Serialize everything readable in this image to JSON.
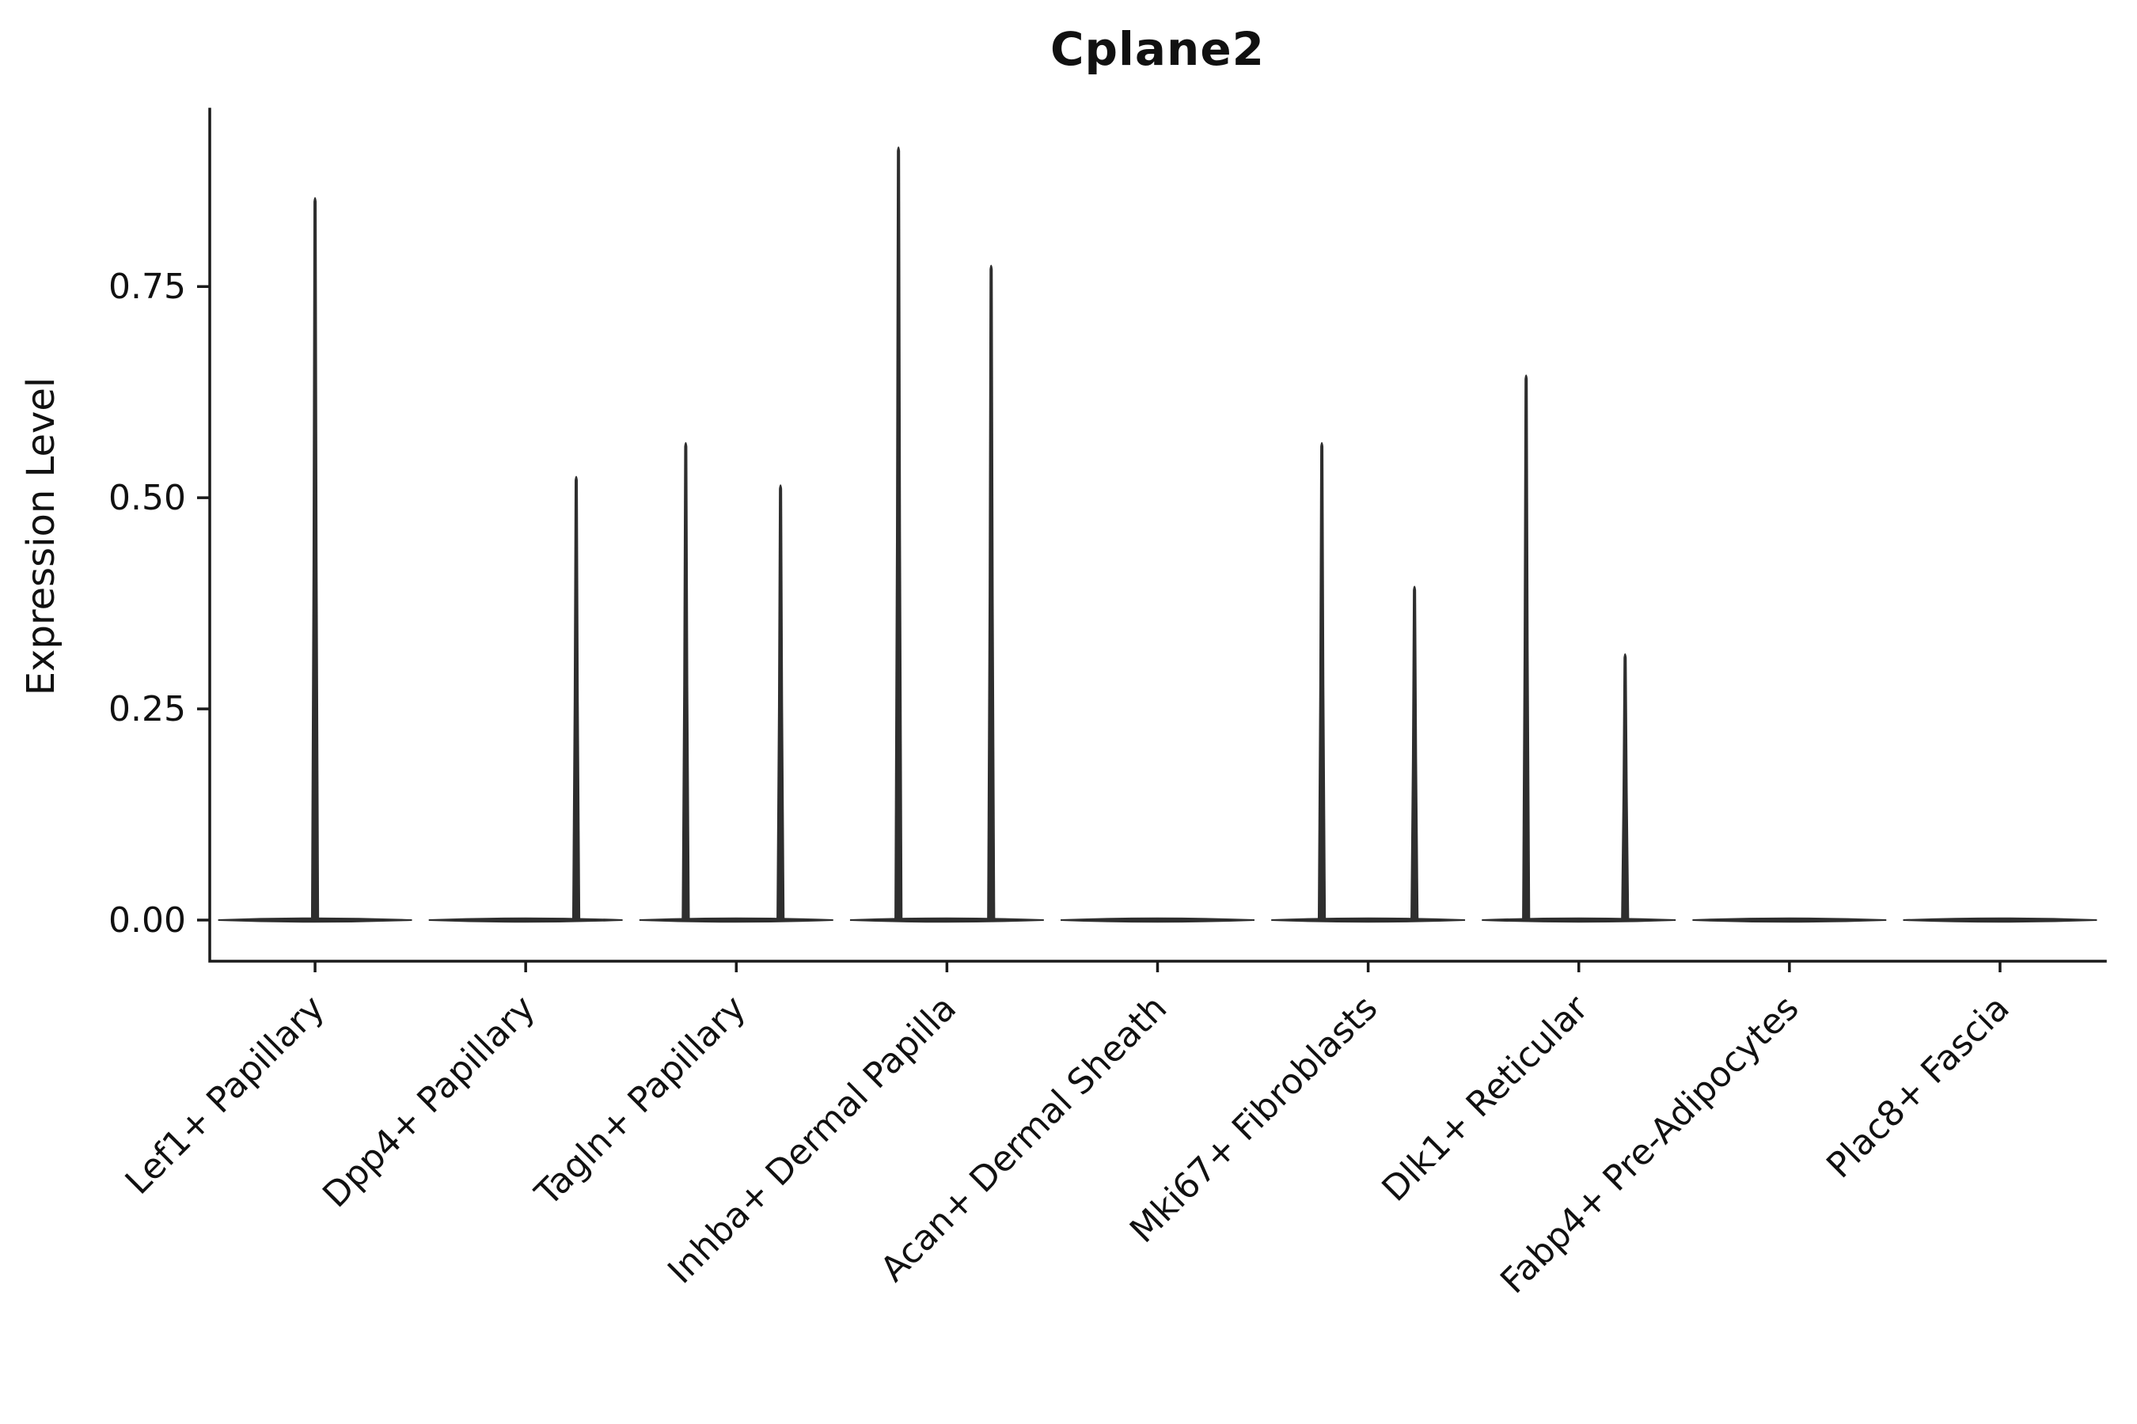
{
  "chart_data": {
    "type": "violin",
    "title": "Cplane2",
    "ylabel": "Expression Level",
    "xlabel": "",
    "ylim": [
      0,
      0.96
    ],
    "yticks": [
      0.0,
      0.25,
      0.5,
      0.75
    ],
    "ytick_labels": [
      "0.00",
      "0.25",
      "0.50",
      "0.75"
    ],
    "categories": [
      "Lef1+ Papillary",
      "Dpp4+ Papillary",
      "Tagln+ Papillary",
      "Inhba+ Dermal Papilla",
      "Acan+ Dermal Sheath",
      "Mki67+ Fibroblasts",
      "Dlk1+ Reticular",
      "Fabp4+ Pre-Adipocytes",
      "Plac8+ Fascia"
    ],
    "violins": [
      {
        "category": "Lef1+ Papillary",
        "spikes": [
          {
            "offset": 0.0,
            "max": 0.86
          }
        ]
      },
      {
        "category": "Dpp4+ Papillary",
        "spikes": [
          {
            "offset": 0.24,
            "max": 0.53
          }
        ]
      },
      {
        "category": "Tagln+ Papillary",
        "spikes": [
          {
            "offset": -0.24,
            "max": 0.57
          },
          {
            "offset": 0.21,
            "max": 0.52
          }
        ]
      },
      {
        "category": "Inhba+ Dermal Papilla",
        "spikes": [
          {
            "offset": -0.23,
            "max": 0.92
          },
          {
            "offset": 0.21,
            "max": 0.78
          }
        ]
      },
      {
        "category": "Acan+ Dermal Sheath",
        "spikes": []
      },
      {
        "category": "Mki67+ Fibroblasts",
        "spikes": [
          {
            "offset": -0.22,
            "max": 0.57
          },
          {
            "offset": 0.22,
            "max": 0.4
          }
        ]
      },
      {
        "category": "Dlk1+ Reticular",
        "spikes": [
          {
            "offset": -0.25,
            "max": 0.65
          },
          {
            "offset": 0.22,
            "max": 0.32
          }
        ]
      },
      {
        "category": "Fabp4+ Pre-Adipocytes",
        "spikes": []
      },
      {
        "category": "Plac8+ Fascia",
        "spikes": []
      }
    ],
    "baseline_half_width": 0.46,
    "line_color": "#2e2e2e",
    "spine_color": "#1a1a1a",
    "text_color": "#111111",
    "grid": false,
    "legend": null
  }
}
